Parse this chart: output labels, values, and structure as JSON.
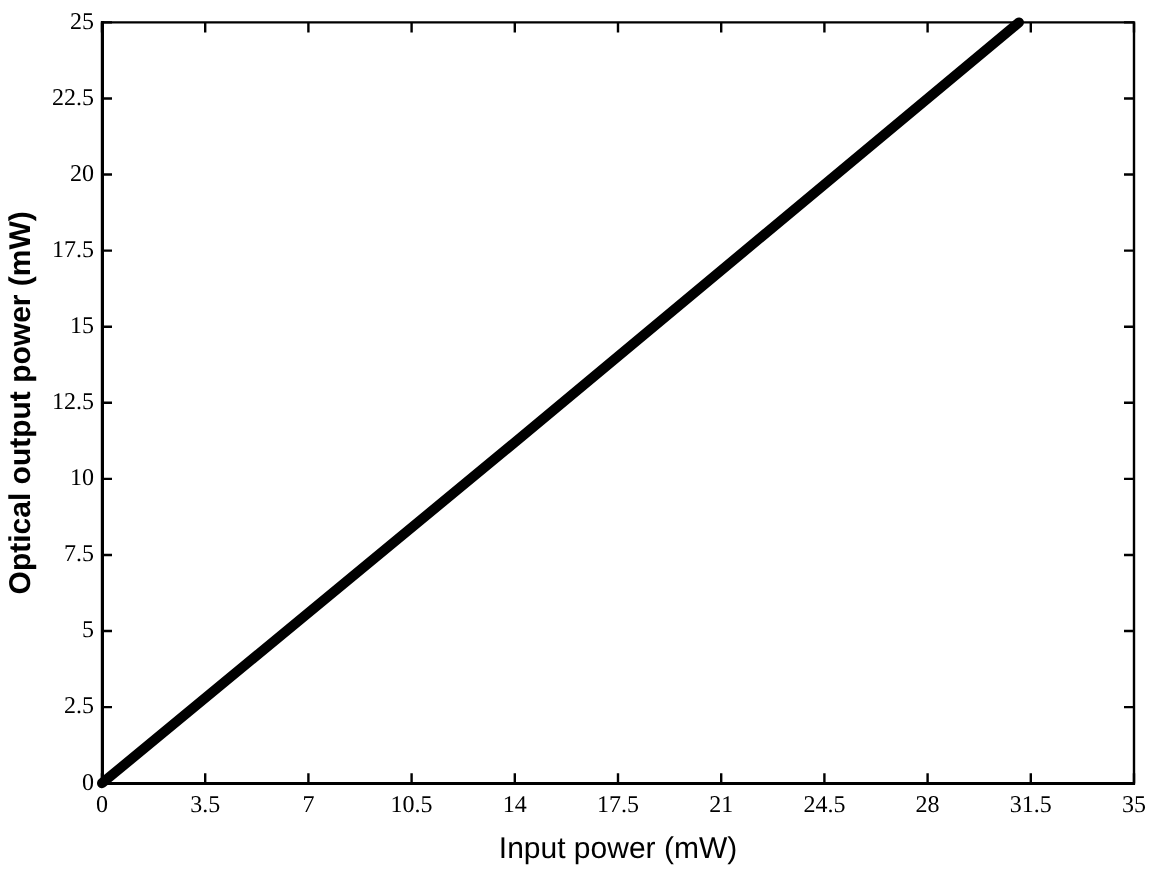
{
  "chart_data": {
    "type": "line",
    "xlabel": "Input power (mW)",
    "ylabel": "Optical output power (mW)",
    "x": [
      0,
      14,
      31.1
    ],
    "series": [
      {
        "color": "#000000",
        "values": [
          0,
          11.2,
          25
        ]
      }
    ],
    "xlim": [
      0,
      35
    ],
    "xticks": [
      0,
      3.5,
      7,
      10.5,
      14,
      17.5,
      21,
      24.5,
      28,
      31.5,
      35
    ],
    "ylim": [
      0,
      25
    ],
    "yticks": [
      0,
      2.5,
      5,
      7.5,
      10,
      12.5,
      15,
      17.5,
      20,
      22.5,
      25
    ],
    "grid": false,
    "legend": false,
    "marker": "none",
    "line_style": "solid"
  }
}
